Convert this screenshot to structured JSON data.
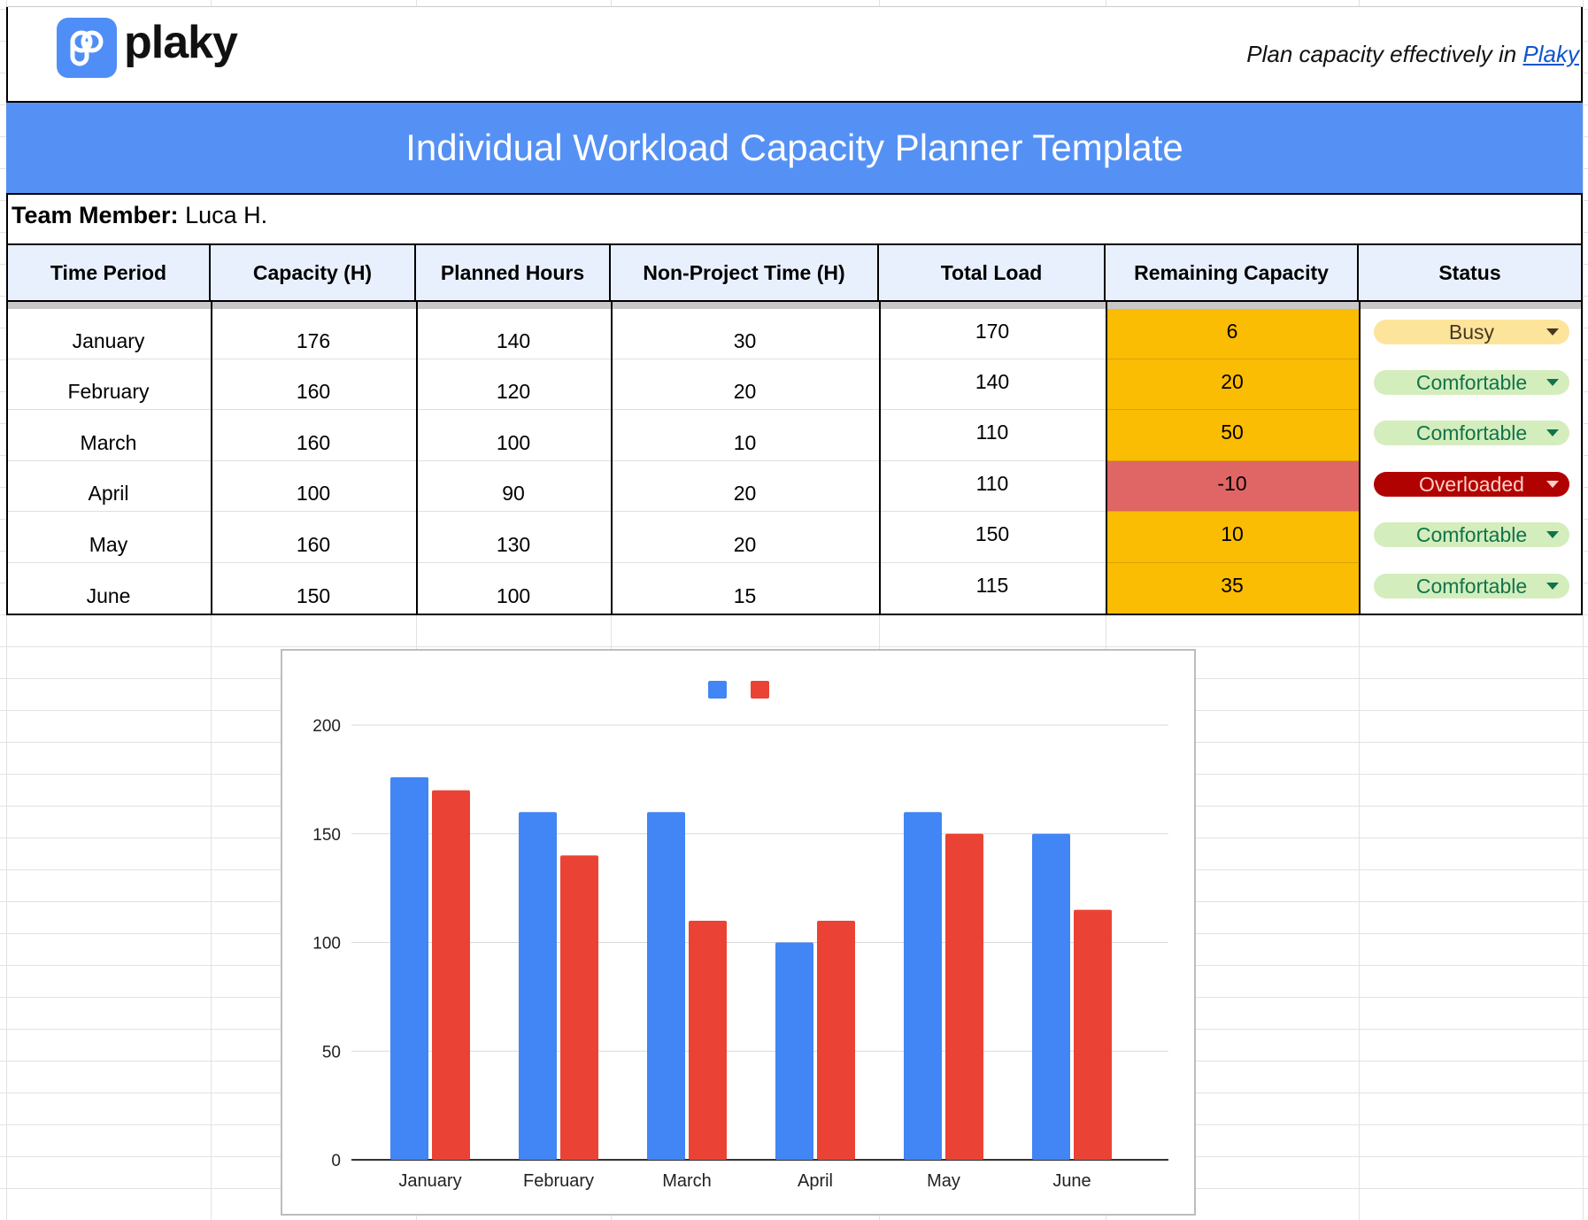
{
  "logo": {
    "text": "plaky"
  },
  "tagline": {
    "prefix": "Plan capacity effectively in ",
    "link": "Plaky"
  },
  "title": "Individual Workload Capacity Planner Template",
  "team_member": {
    "label": "Team Member:",
    "value": " Luca H."
  },
  "columns": [
    "Time Period",
    "Capacity (H)",
    "Planned Hours",
    "Non-Project Time (H)",
    "Total Load",
    "Remaining Capacity",
    "Status"
  ],
  "rows": [
    {
      "period": "January",
      "capacity": "176",
      "planned": "140",
      "non_project": "30",
      "total": "170",
      "remaining": "6",
      "status": "Busy"
    },
    {
      "period": "February",
      "capacity": "160",
      "planned": "120",
      "non_project": "20",
      "total": "140",
      "remaining": "20",
      "status": "Comfortable"
    },
    {
      "period": "March",
      "capacity": "160",
      "planned": "100",
      "non_project": "10",
      "total": "110",
      "remaining": "50",
      "status": "Comfortable"
    },
    {
      "period": "April",
      "capacity": "100",
      "planned": "90",
      "non_project": "20",
      "total": "110",
      "remaining": "-10",
      "status": "Overloaded"
    },
    {
      "period": "May",
      "capacity": "160",
      "planned": "130",
      "non_project": "20",
      "total": "150",
      "remaining": "10",
      "status": "Comfortable"
    },
    {
      "period": "June",
      "capacity": "150",
      "planned": "100",
      "non_project": "15",
      "total": "115",
      "remaining": "35",
      "status": "Comfortable"
    }
  ],
  "colors": {
    "title_bg": "#5591f5",
    "header_bg": "#e8f0fe",
    "remaining_ok": "#fbbc04",
    "remaining_negative": "#e06666",
    "Busy": {
      "bg": "#fde49b",
      "fg": "#473821"
    },
    "Comfortable": {
      "bg": "#d4edbc",
      "fg": "#11734b"
    },
    "Overloaded": {
      "bg": "#b10202",
      "fg": "#ffcfc9"
    }
  },
  "chart_data": {
    "type": "bar",
    "categories": [
      "January",
      "February",
      "March",
      "April",
      "May",
      "June"
    ],
    "series": [
      {
        "values": [
          176,
          160,
          160,
          100,
          160,
          150
        ],
        "color": "#4285f4"
      },
      {
        "values": [
          170,
          140,
          110,
          110,
          150,
          115
        ],
        "color": "#ea4335"
      }
    ],
    "yticks": [
      0,
      50,
      100,
      150,
      200
    ],
    "ylim": [
      0,
      200
    ],
    "grid": true,
    "legend": "top"
  }
}
